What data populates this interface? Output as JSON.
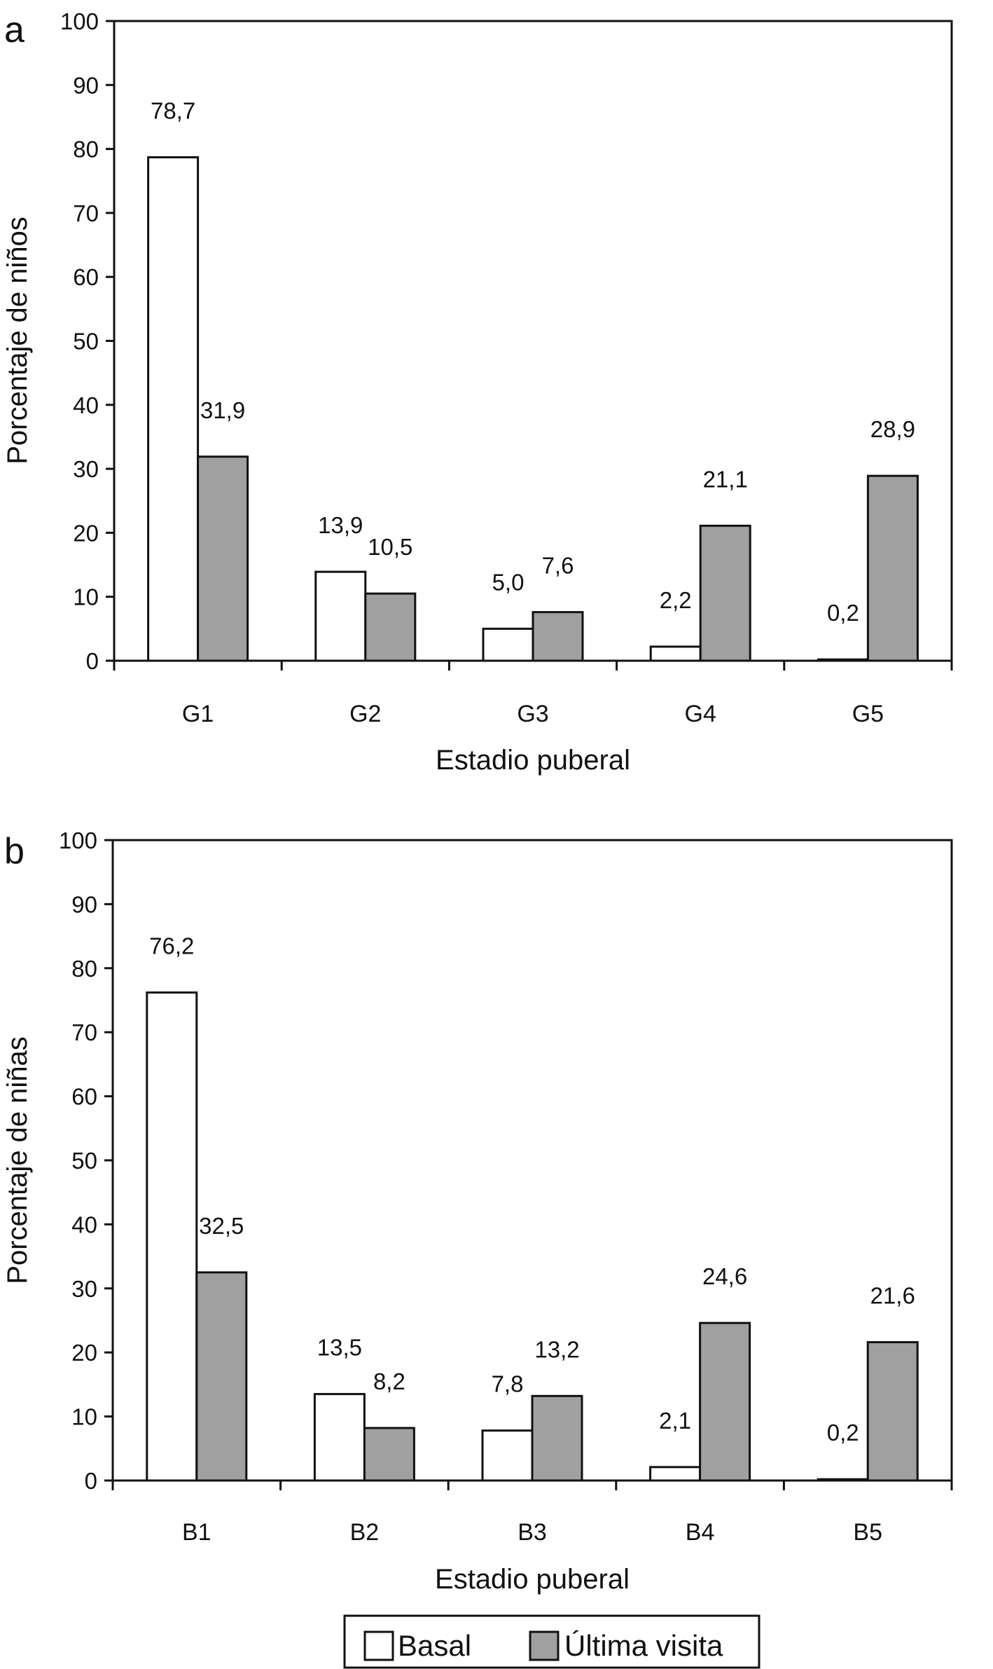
{
  "colors": {
    "basal": "#ffffff",
    "ultima": "#a0a0a0",
    "stroke": "#111111"
  },
  "legend": {
    "basal": "Basal",
    "ultima": "Última visita"
  },
  "chart_data": [
    {
      "type": "bar",
      "panel": "a",
      "categories": [
        "G1",
        "G2",
        "G3",
        "G4",
        "G5"
      ],
      "series": [
        {
          "name": "Basal",
          "values": [
            78.7,
            13.9,
            5.0,
            2.2,
            0.2
          ],
          "labels": [
            "78,7",
            "13,9",
            "5,0",
            "2,2",
            "0,2"
          ]
        },
        {
          "name": "Última visita",
          "values": [
            31.9,
            10.5,
            7.6,
            21.1,
            28.9
          ],
          "labels": [
            "31,9",
            "10,5",
            "7,6",
            "21,1",
            "28,9"
          ]
        }
      ],
      "xlabel": "Estadio puberal",
      "ylabel": "Porcentaje de niños",
      "ylim": [
        0,
        100
      ],
      "yticks": [
        0,
        10,
        20,
        30,
        40,
        50,
        60,
        70,
        80,
        90,
        100
      ]
    },
    {
      "type": "bar",
      "panel": "b",
      "categories": [
        "B1",
        "B2",
        "B3",
        "B4",
        "B5"
      ],
      "series": [
        {
          "name": "Basal",
          "values": [
            76.2,
            13.5,
            7.8,
            2.1,
            0.2
          ],
          "labels": [
            "76,2",
            "13,5",
            "7,8",
            "2,1",
            "0,2"
          ]
        },
        {
          "name": "Última visita",
          "values": [
            32.5,
            8.2,
            13.2,
            24.6,
            21.6
          ],
          "labels": [
            "32,5",
            "8,2",
            "13,2",
            "24,6",
            "21,6"
          ]
        }
      ],
      "xlabel": "Estadio puberal",
      "ylabel": "Porcentaje de niñas",
      "ylim": [
        0,
        100
      ],
      "yticks": [
        0,
        10,
        20,
        30,
        40,
        50,
        60,
        70,
        80,
        90,
        100
      ]
    }
  ]
}
